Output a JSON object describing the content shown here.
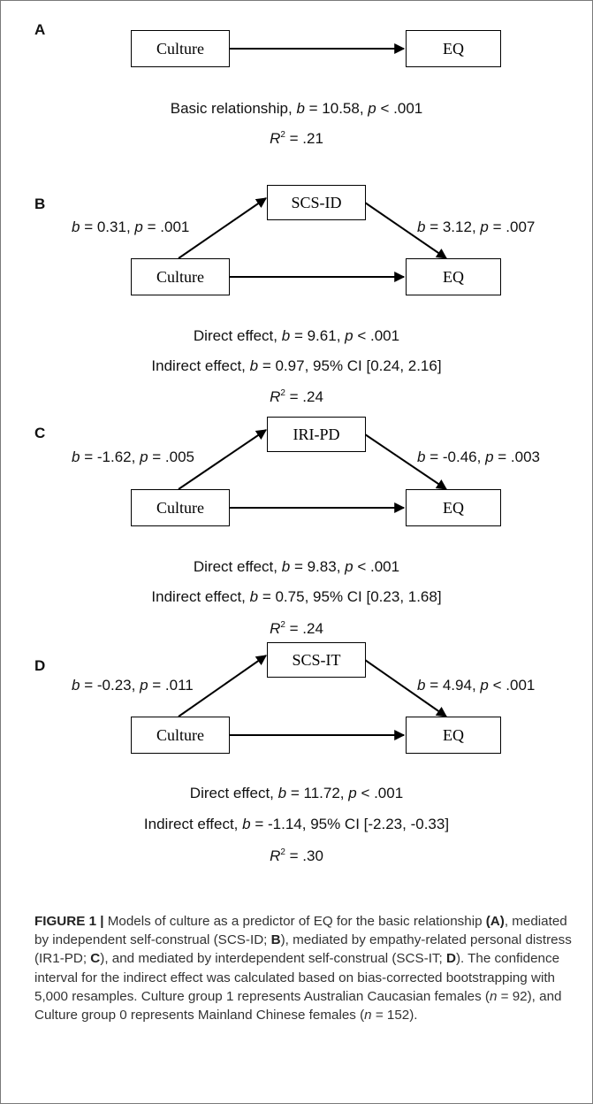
{
  "panels": {
    "A": {
      "letter": "A",
      "culture": "Culture",
      "outcome": "EQ",
      "basic": {
        "prefix": "Basic relationship, ",
        "b": "= 10.58",
        "sep": ", ",
        "p": "< .001"
      },
      "r2": "= .21"
    },
    "B": {
      "letter": "B",
      "mediator": "SCS-ID",
      "culture": "Culture",
      "outcome": "EQ",
      "path_a": {
        "b": "= 0.31",
        "p": "= .001"
      },
      "path_b": {
        "b": "= 3.12",
        "p": "= .007"
      },
      "direct": {
        "prefix": "Direct effect, ",
        "b": "= 9.61",
        "p": "< .001"
      },
      "indirect": {
        "prefix": "Indirect effect, ",
        "b": "= 0.97",
        "ci": "95% CI [0.24, 2.16]"
      },
      "r2": "= .24"
    },
    "C": {
      "letter": "C",
      "mediator": "IRI-PD",
      "culture": "Culture",
      "outcome": "EQ",
      "path_a": {
        "b": "= -1.62",
        "p": "= .005"
      },
      "path_b": {
        "b": "= -0.46",
        "p": "= .003"
      },
      "direct": {
        "prefix": "Direct effect, ",
        "b": "= 9.83",
        "p": "< .001"
      },
      "indirect": {
        "prefix": "Indirect effect, ",
        "b": "= 0.75",
        "ci": "95% CI [0.23, 1.68]"
      },
      "r2": "= .24"
    },
    "D": {
      "letter": "D",
      "mediator": "SCS-IT",
      "culture": "Culture",
      "outcome": "EQ",
      "path_a": {
        "b": "= -0.23",
        "p": "= .011"
      },
      "path_b": {
        "b": "= 4.94",
        "p": "< .001"
      },
      "direct": {
        "prefix": "Direct effect, ",
        "b": "= 11.72",
        "p": "< .001"
      },
      "indirect": {
        "prefix": "Indirect effect, ",
        "b": "= -1.14",
        "ci": "95% CI [-2.23, -0.33]"
      },
      "r2": "= .30"
    }
  },
  "symbols": {
    "b": "b",
    "p": "p",
    "R": "R",
    "two": "2",
    "n": "n"
  },
  "caption": {
    "label": "FIGURE 1 |",
    "t1": " Models of culture as a predictor of EQ for the basic relationship ",
    "refA": "(A)",
    "t2": ", mediated by independent self-construal (SCS-ID; ",
    "refB": "B",
    "t3": "), mediated by empathy-related personal distress (IR1-PD; ",
    "refC": "C",
    "t4": "), and mediated by interdependent self-construal (SCS-IT; ",
    "refD": "D",
    "t5": "). The confidence interval for the indirect effect was calculated based on bias-corrected bootstrapping with 5,000 resamples. Culture group 1 represents Australian Caucasian females (",
    "n1": " = 92), and Culture group 0 represents Mainland Chinese females (",
    "n2": " = 152)."
  },
  "colors": {
    "border": "#7a7a7a",
    "lines": "#000000",
    "text": "#111111"
  }
}
